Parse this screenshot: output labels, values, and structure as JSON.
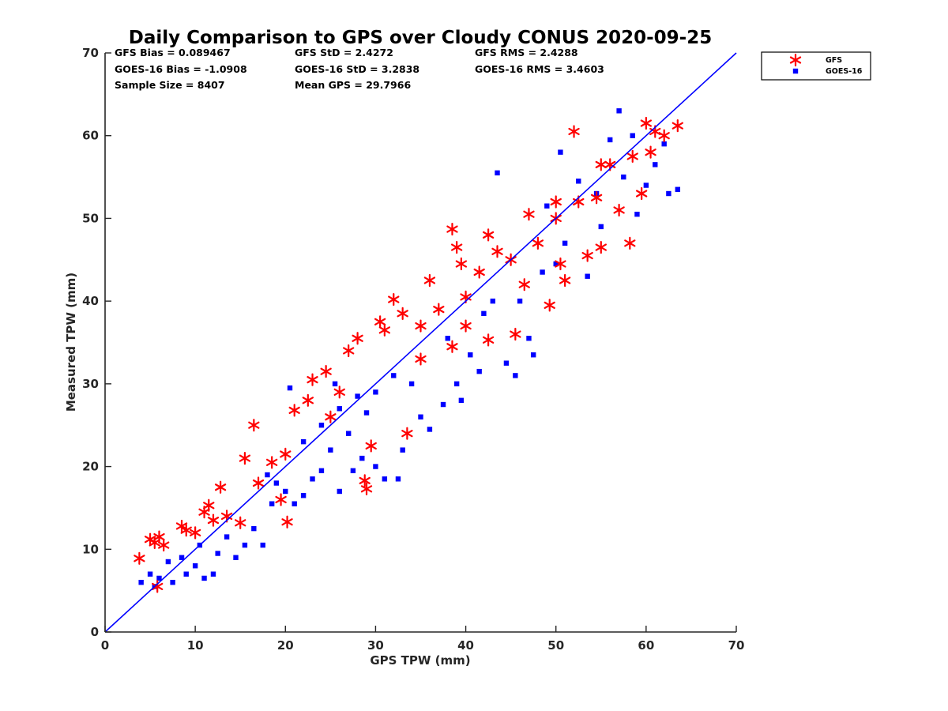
{
  "chart_data": {
    "type": "scatter",
    "title": "Daily Comparison to GPS over Cloudy CONUS 2020-09-25",
    "xlabel": "GPS TPW (mm)",
    "ylabel": "Measured TPW (mm)",
    "xlim": [
      0,
      70
    ],
    "ylim": [
      0,
      70
    ],
    "xticks": [
      "0",
      "10",
      "20",
      "30",
      "40",
      "50",
      "60",
      "70"
    ],
    "yticks": [
      "0",
      "10",
      "20",
      "30",
      "40",
      "50",
      "60",
      "70"
    ],
    "grid": false,
    "legend_position": "outside-top-right",
    "reference_line": {
      "label": "1:1",
      "x": [
        0,
        70
      ],
      "y": [
        0,
        70
      ],
      "color": "#0000ff"
    },
    "stats": [
      [
        "GFS Bias = 0.089467",
        "GFS StD = 2.4272",
        "GFS RMS = 2.4288"
      ],
      [
        "GOES-16 Bias = -1.0908",
        "GOES-16 StD = 3.2838",
        "GOES-16 RMS = 3.4603"
      ],
      [
        "Sample Size = 8407",
        "Mean GPS = 29.7966"
      ]
    ],
    "series": [
      {
        "name": "GFS",
        "marker": "asterisk",
        "color": "#ff0000",
        "points": [
          [
            3.8,
            8.9
          ],
          [
            5.0,
            11.2
          ],
          [
            5.5,
            10.8
          ],
          [
            6.0,
            11.5
          ],
          [
            6.5,
            10.5
          ],
          [
            5.8,
            5.5
          ],
          [
            8.5,
            12.8
          ],
          [
            9.0,
            12.3
          ],
          [
            10.0,
            12.0
          ],
          [
            11.0,
            14.5
          ],
          [
            11.5,
            15.3
          ],
          [
            12.8,
            17.5
          ],
          [
            12.0,
            13.5
          ],
          [
            13.5,
            14.0
          ],
          [
            15.0,
            13.2
          ],
          [
            15.5,
            21.0
          ],
          [
            16.5,
            25.0
          ],
          [
            17.0,
            18.0
          ],
          [
            18.5,
            20.5
          ],
          [
            19.5,
            16.0
          ],
          [
            20.2,
            13.3
          ],
          [
            21.0,
            26.8
          ],
          [
            22.5,
            28.0
          ],
          [
            23.0,
            30.5
          ],
          [
            24.5,
            31.5
          ],
          [
            26.0,
            29.0
          ],
          [
            27.0,
            34.0
          ],
          [
            28.0,
            35.5
          ],
          [
            28.8,
            18.3
          ],
          [
            29.0,
            17.3
          ],
          [
            29.5,
            22.5
          ],
          [
            30.5,
            37.5
          ],
          [
            31.0,
            36.5
          ],
          [
            32.0,
            40.2
          ],
          [
            33.0,
            38.5
          ],
          [
            33.5,
            24.0
          ],
          [
            35.0,
            37.0
          ],
          [
            36.0,
            42.5
          ],
          [
            37.0,
            39.0
          ],
          [
            38.5,
            48.7
          ],
          [
            39.0,
            46.5
          ],
          [
            39.5,
            44.5
          ],
          [
            38.5,
            34.5
          ],
          [
            40.0,
            37.0
          ],
          [
            41.5,
            43.5
          ],
          [
            42.5,
            48.0
          ],
          [
            43.5,
            46.0
          ],
          [
            42.5,
            35.3
          ],
          [
            45.5,
            36.0
          ],
          [
            46.5,
            42.0
          ],
          [
            47.0,
            50.5
          ],
          [
            48.0,
            47.0
          ],
          [
            49.3,
            39.5
          ],
          [
            50.0,
            52.0
          ],
          [
            50.5,
            44.5
          ],
          [
            51.0,
            42.5
          ],
          [
            52.0,
            60.5
          ],
          [
            52.5,
            52.0
          ],
          [
            53.5,
            45.5
          ],
          [
            54.5,
            52.5
          ],
          [
            55.0,
            46.5
          ],
          [
            56.0,
            56.5
          ],
          [
            57.0,
            51.0
          ],
          [
            58.2,
            47.0
          ],
          [
            58.5,
            57.5
          ],
          [
            59.5,
            53.0
          ],
          [
            60.0,
            61.5
          ],
          [
            60.5,
            58.0
          ],
          [
            61.0,
            60.5
          ],
          [
            62.0,
            60.0
          ],
          [
            63.5,
            61.2
          ],
          [
            45.0,
            45.0
          ],
          [
            35.0,
            33.0
          ],
          [
            25.0,
            26.0
          ],
          [
            20.0,
            21.5
          ],
          [
            40.0,
            40.5
          ],
          [
            50.0,
            50.0
          ],
          [
            55.0,
            56.5
          ]
        ]
      },
      {
        "name": "GOES-16",
        "marker": "square",
        "color": "#0000ff",
        "points": [
          [
            4.0,
            6.0
          ],
          [
            5.0,
            7.0
          ],
          [
            5.5,
            5.5
          ],
          [
            6.0,
            6.5
          ],
          [
            7.0,
            8.5
          ],
          [
            7.5,
            6.0
          ],
          [
            8.5,
            9.0
          ],
          [
            9.0,
            7.0
          ],
          [
            10.0,
            8.0
          ],
          [
            10.5,
            10.5
          ],
          [
            11.0,
            6.5
          ],
          [
            12.0,
            7.0
          ],
          [
            12.5,
            9.5
          ],
          [
            13.5,
            11.5
          ],
          [
            14.5,
            9.0
          ],
          [
            15.5,
            10.5
          ],
          [
            16.5,
            12.5
          ],
          [
            17.5,
            10.5
          ],
          [
            18.5,
            15.5
          ],
          [
            19.0,
            18.0
          ],
          [
            20.0,
            17.0
          ],
          [
            20.5,
            29.5
          ],
          [
            21.0,
            15.5
          ],
          [
            22.0,
            16.5
          ],
          [
            23.0,
            18.5
          ],
          [
            24.0,
            19.5
          ],
          [
            25.0,
            22.0
          ],
          [
            25.5,
            30.0
          ],
          [
            26.0,
            17.0
          ],
          [
            27.0,
            24.0
          ],
          [
            27.5,
            19.5
          ],
          [
            28.5,
            21.0
          ],
          [
            29.0,
            26.5
          ],
          [
            30.0,
            20.0
          ],
          [
            31.0,
            18.5
          ],
          [
            32.5,
            18.5
          ],
          [
            33.0,
            22.0
          ],
          [
            34.0,
            30.0
          ],
          [
            35.0,
            26.0
          ],
          [
            36.0,
            24.5
          ],
          [
            37.5,
            27.5
          ],
          [
            38.0,
            35.5
          ],
          [
            39.0,
            30.0
          ],
          [
            39.5,
            28.0
          ],
          [
            40.5,
            33.5
          ],
          [
            41.5,
            31.5
          ],
          [
            42.0,
            38.5
          ],
          [
            43.0,
            40.0
          ],
          [
            43.5,
            55.5
          ],
          [
            44.5,
            32.5
          ],
          [
            45.5,
            31.0
          ],
          [
            46.0,
            40.0
          ],
          [
            47.0,
            35.5
          ],
          [
            47.5,
            33.5
          ],
          [
            48.5,
            43.5
          ],
          [
            49.0,
            51.5
          ],
          [
            50.0,
            44.5
          ],
          [
            50.5,
            58.0
          ],
          [
            51.0,
            47.0
          ],
          [
            52.5,
            54.5
          ],
          [
            53.5,
            43.0
          ],
          [
            54.5,
            53.0
          ],
          [
            55.0,
            49.0
          ],
          [
            56.0,
            59.5
          ],
          [
            57.0,
            63.0
          ],
          [
            57.5,
            55.0
          ],
          [
            58.5,
            60.0
          ],
          [
            59.0,
            50.5
          ],
          [
            60.0,
            54.0
          ],
          [
            61.0,
            56.5
          ],
          [
            62.0,
            59.0
          ],
          [
            62.5,
            53.0
          ],
          [
            63.5,
            53.5
          ],
          [
            26.0,
            27.0
          ],
          [
            28.0,
            28.5
          ],
          [
            30.0,
            29.0
          ],
          [
            32.0,
            31.0
          ],
          [
            24.0,
            25.0
          ],
          [
            22.0,
            23.0
          ],
          [
            18.0,
            19.0
          ]
        ]
      }
    ]
  }
}
